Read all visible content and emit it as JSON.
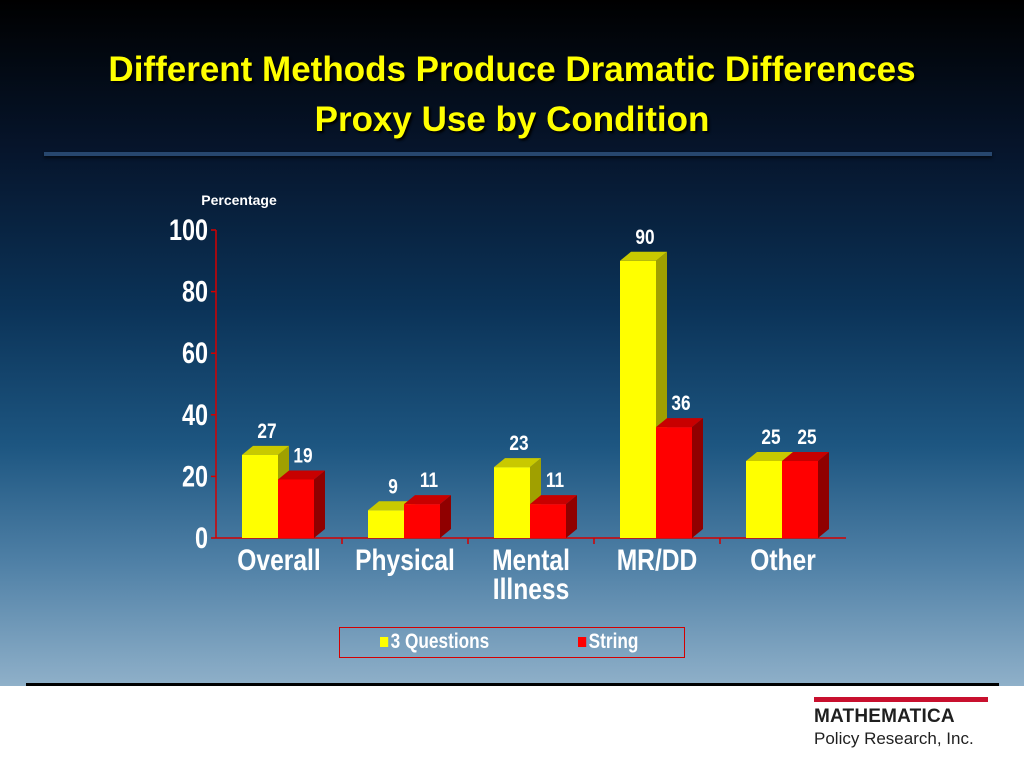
{
  "slide": {
    "title_line1": "Different Methods Produce Dramatic Differences",
    "title_line2": "Proxy Use by Condition"
  },
  "logo": {
    "name": "MATHEMATICA",
    "subtitle": "Policy Research, Inc.",
    "bar_color": "#c8102e"
  },
  "chart_data": {
    "type": "bar",
    "title": "",
    "xlabel": "",
    "ylabel": "Percentage",
    "ylim": [
      0,
      100
    ],
    "yticks": [
      0,
      20,
      40,
      60,
      80,
      100
    ],
    "categories": [
      "Overall",
      "Physical",
      "Mental Illness",
      "MR/DD",
      "Other"
    ],
    "series": [
      {
        "name": "3 Questions",
        "values": [
          27,
          9,
          23,
          90,
          25
        ],
        "color": "#ffff00"
      },
      {
        "name": "String",
        "values": [
          19,
          11,
          11,
          36,
          25
        ],
        "color": "#ff0000"
      }
    ],
    "data_labels": true,
    "legend_position": "bottom",
    "grid": false,
    "style": "3d"
  }
}
